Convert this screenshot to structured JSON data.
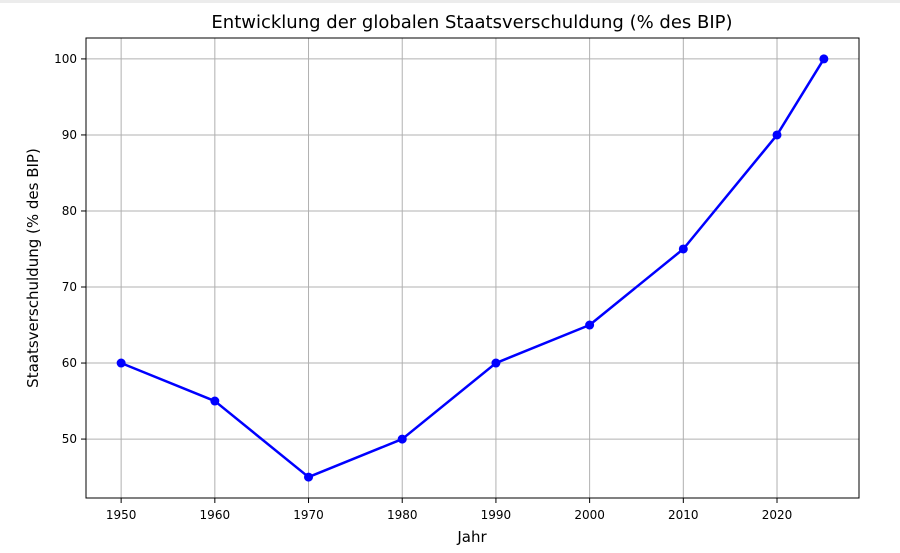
{
  "chart_data": {
    "type": "line",
    "title": "Entwicklung der globalen Staatsverschuldung (% des BIP)",
    "xlabel": "Jahr",
    "ylabel": "Staatsverschuldung (% des BIP)",
    "x": [
      1950,
      1960,
      1970,
      1980,
      1990,
      2000,
      2010,
      2020,
      2025
    ],
    "series": [
      {
        "values": [
          60,
          55,
          45,
          50,
          60,
          65,
          75,
          90,
          100
        ],
        "color": "#0000ff",
        "marker": "circle"
      }
    ],
    "xticks": [
      "1950",
      "1960",
      "1970",
      "1980",
      "1990",
      "2000",
      "2010",
      "2020"
    ],
    "yticks": [
      "50",
      "60",
      "70",
      "80",
      "90",
      "100"
    ],
    "xlim": [
      1946.25,
      2028.75
    ],
    "ylim": [
      42.25,
      102.75
    ],
    "grid": true
  }
}
